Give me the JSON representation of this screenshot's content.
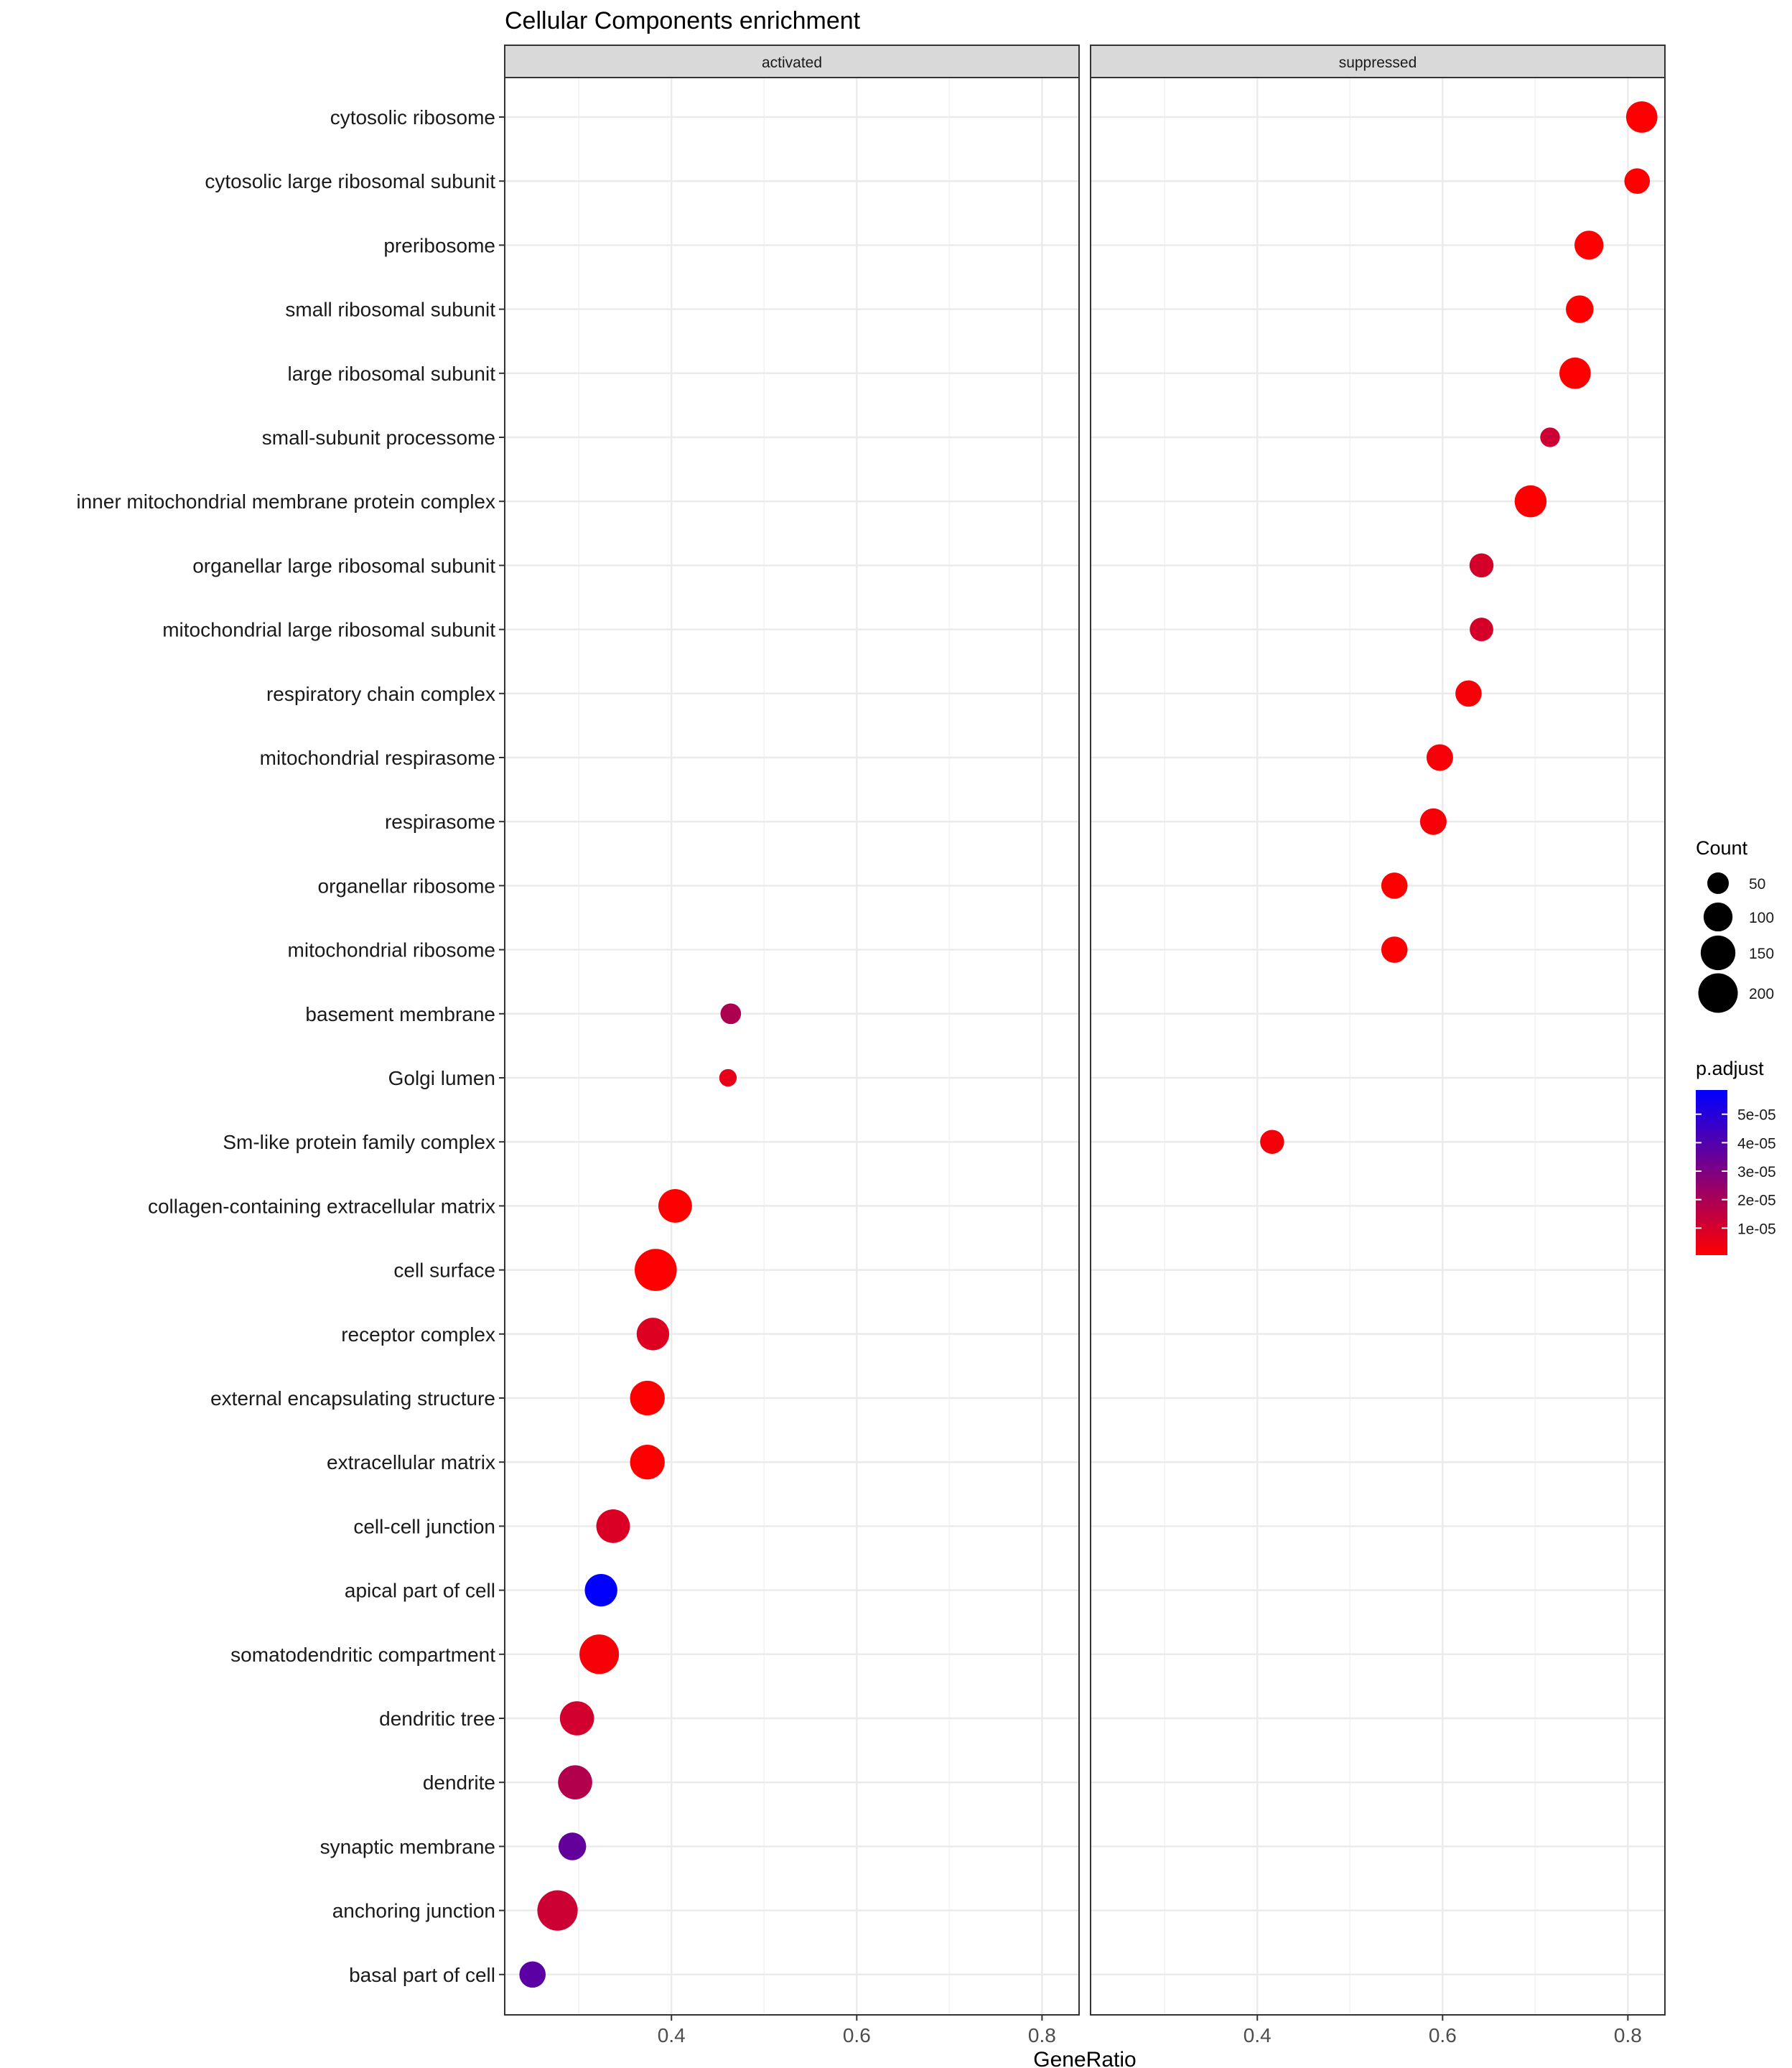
{
  "chart_data": {
    "type": "scatter",
    "title": "Cellular Components enrichment",
    "xlabel": "GeneRatio",
    "ylabel": "",
    "xlim": [
      0.22,
      0.84
    ],
    "x_ticks": [
      0.4,
      0.6,
      0.8
    ],
    "x_tick_labels": [
      "0.4",
      "0.6",
      "0.8"
    ],
    "panels": [
      "activated",
      "suppressed"
    ],
    "categories": [
      "cytosolic ribosome",
      "cytosolic large ribosomal subunit",
      "preribosome",
      "small ribosomal subunit",
      "large ribosomal subunit",
      "small-subunit processome",
      "inner mitochondrial membrane protein complex",
      "organellar large ribosomal subunit",
      "mitochondrial large ribosomal subunit",
      "respiratory chain complex",
      "mitochondrial respirasome",
      "respirasome",
      "organellar ribosome",
      "mitochondrial ribosome",
      "basement membrane",
      "Golgi lumen",
      "Sm-like protein family complex",
      "collagen-containing extracellular matrix",
      "cell surface",
      "receptor complex",
      "external encapsulating structure",
      "extracellular matrix",
      "cell-cell junction",
      "apical part of cell",
      "somatodendritic compartment",
      "dendritic tree",
      "dendrite",
      "synaptic membrane",
      "anchoring junction",
      "basal part of cell"
    ],
    "points": [
      {
        "panel": "suppressed",
        "term": "cytosolic ribosome",
        "gene_ratio": 0.815,
        "count": 120,
        "p_adjust": 1e-06
      },
      {
        "panel": "suppressed",
        "term": "cytosolic large ribosomal subunit",
        "gene_ratio": 0.81,
        "count": 75,
        "p_adjust": 1e-06
      },
      {
        "panel": "suppressed",
        "term": "preribosome",
        "gene_ratio": 0.758,
        "count": 100,
        "p_adjust": 1e-06
      },
      {
        "panel": "suppressed",
        "term": "small ribosomal subunit",
        "gene_ratio": 0.748,
        "count": 90,
        "p_adjust": 1e-06
      },
      {
        "panel": "suppressed",
        "term": "large ribosomal subunit",
        "gene_ratio": 0.743,
        "count": 120,
        "p_adjust": 1e-06
      },
      {
        "panel": "suppressed",
        "term": "small-subunit processome",
        "gene_ratio": 0.716,
        "count": 40,
        "p_adjust": 1.2e-05
      },
      {
        "panel": "suppressed",
        "term": "inner mitochondrial membrane protein complex",
        "gene_ratio": 0.695,
        "count": 125,
        "p_adjust": 1e-06
      },
      {
        "panel": "suppressed",
        "term": "organellar large ribosomal subunit",
        "gene_ratio": 0.642,
        "count": 65,
        "p_adjust": 1e-05
      },
      {
        "panel": "suppressed",
        "term": "mitochondrial large ribosomal subunit",
        "gene_ratio": 0.642,
        "count": 62,
        "p_adjust": 1e-05
      },
      {
        "panel": "suppressed",
        "term": "respiratory chain complex",
        "gene_ratio": 0.628,
        "count": 80,
        "p_adjust": 2e-06
      },
      {
        "panel": "suppressed",
        "term": "mitochondrial respirasome",
        "gene_ratio": 0.597,
        "count": 82,
        "p_adjust": 2e-06
      },
      {
        "panel": "suppressed",
        "term": "respirasome",
        "gene_ratio": 0.59,
        "count": 82,
        "p_adjust": 2e-06
      },
      {
        "panel": "suppressed",
        "term": "organellar ribosome",
        "gene_ratio": 0.548,
        "count": 80,
        "p_adjust": 1e-06
      },
      {
        "panel": "suppressed",
        "term": "mitochondrial ribosome",
        "gene_ratio": 0.548,
        "count": 80,
        "p_adjust": 1e-06
      },
      {
        "panel": "suppressed",
        "term": "Sm-like protein family complex",
        "gene_ratio": 0.416,
        "count": 65,
        "p_adjust": 3e-06
      },
      {
        "panel": "activated",
        "term": "basement membrane",
        "gene_ratio": 0.464,
        "count": 45,
        "p_adjust": 1.9e-05
      },
      {
        "panel": "activated",
        "term": "Golgi lumen",
        "gene_ratio": 0.461,
        "count": 30,
        "p_adjust": 6e-06
      },
      {
        "panel": "activated",
        "term": "collagen-containing extracellular matrix",
        "gene_ratio": 0.404,
        "count": 140,
        "p_adjust": 1e-06
      },
      {
        "panel": "activated",
        "term": "cell surface",
        "gene_ratio": 0.383,
        "count": 230,
        "p_adjust": 1e-06
      },
      {
        "panel": "activated",
        "term": "receptor complex",
        "gene_ratio": 0.38,
        "count": 130,
        "p_adjust": 8e-06
      },
      {
        "panel": "activated",
        "term": "external encapsulating structure",
        "gene_ratio": 0.374,
        "count": 150,
        "p_adjust": 1e-06
      },
      {
        "panel": "activated",
        "term": "extracellular matrix",
        "gene_ratio": 0.374,
        "count": 150,
        "p_adjust": 1e-06
      },
      {
        "panel": "activated",
        "term": "cell-cell junction",
        "gene_ratio": 0.337,
        "count": 140,
        "p_adjust": 9e-06
      },
      {
        "panel": "activated",
        "term": "apical part of cell",
        "gene_ratio": 0.324,
        "count": 130,
        "p_adjust": 5.8e-05
      },
      {
        "panel": "activated",
        "term": "somatodendritic compartment",
        "gene_ratio": 0.322,
        "count": 200,
        "p_adjust": 2e-06
      },
      {
        "panel": "activated",
        "term": "dendritic tree",
        "gene_ratio": 0.298,
        "count": 145,
        "p_adjust": 1.1e-05
      },
      {
        "panel": "activated",
        "term": "dendrite",
        "gene_ratio": 0.296,
        "count": 145,
        "p_adjust": 1.8e-05
      },
      {
        "panel": "activated",
        "term": "synaptic membrane",
        "gene_ratio": 0.293,
        "count": 90,
        "p_adjust": 3.6e-05
      },
      {
        "panel": "activated",
        "term": "anchoring junction",
        "gene_ratio": 0.277,
        "count": 210,
        "p_adjust": 1.2e-05
      },
      {
        "panel": "activated",
        "term": "basal part of cell",
        "gene_ratio": 0.25,
        "count": 80,
        "p_adjust": 3.8e-05
      }
    ],
    "legend_count": {
      "title": "Count",
      "values": [
        50,
        100,
        150,
        200
      ],
      "labels": [
        "50",
        "100",
        "150",
        "200"
      ]
    },
    "legend_color": {
      "title": "p.adjust",
      "min": 5e-07,
      "max": 5.85e-05,
      "low_color": "#ff0000",
      "high_color": "#0000ff",
      "ticks": [
        5e-05,
        4e-05,
        3e-05,
        2e-05,
        1e-05
      ],
      "labels": [
        "5e-05",
        "4e-05",
        "3e-05",
        "2e-05",
        "1e-05"
      ]
    },
    "grid": true,
    "legend_position": "right"
  }
}
